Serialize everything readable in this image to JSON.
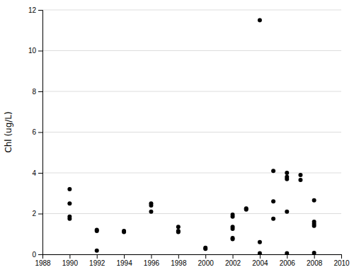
{
  "chart_data": {
    "type": "scatter",
    "ylabel": "Chl (ug/L)",
    "x": [
      1990,
      1990,
      1990,
      1990,
      1992,
      1992,
      1992,
      1994,
      1994,
      1996,
      1996,
      1996,
      1998,
      1998,
      1998,
      2000,
      2000,
      2002,
      2002,
      2002,
      2002,
      2002,
      2002,
      2003,
      2003,
      2004,
      2004,
      2004,
      2005,
      2005,
      2005,
      2006,
      2006,
      2006,
      2006,
      2006,
      2007,
      2007,
      2008,
      2008,
      2008,
      2008,
      2008
    ],
    "values": [
      3.2,
      2.5,
      1.85,
      1.75,
      1.2,
      1.15,
      0.18,
      1.15,
      1.1,
      2.5,
      2.4,
      2.1,
      1.35,
      1.15,
      1.1,
      0.32,
      0.27,
      1.95,
      1.85,
      1.35,
      1.25,
      0.8,
      0.75,
      2.25,
      2.2,
      11.5,
      0.6,
      0.05,
      4.1,
      2.6,
      1.75,
      4.0,
      3.8,
      3.7,
      2.1,
      0.05,
      3.9,
      3.65,
      2.65,
      1.6,
      1.5,
      1.4,
      0.07
    ],
    "color": "#000000",
    "xlim": [
      1988,
      2010
    ],
    "ylim": [
      0,
      12
    ],
    "xticks": [
      1988,
      1990,
      1992,
      1994,
      1996,
      1998,
      2000,
      2002,
      2004,
      2006,
      2008,
      2010
    ],
    "yticks": [
      0,
      2,
      4,
      6,
      8,
      10,
      12
    ],
    "grid": true
  }
}
